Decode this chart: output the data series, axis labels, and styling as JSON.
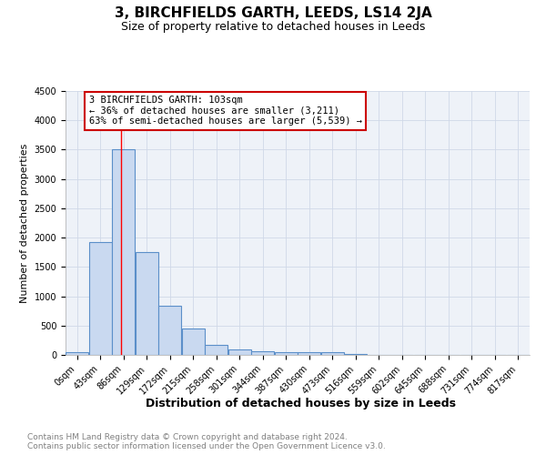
{
  "title": "3, BIRCHFIELDS GARTH, LEEDS, LS14 2JA",
  "subtitle": "Size of property relative to detached houses in Leeds",
  "xlabel": "Distribution of detached houses by size in Leeds",
  "ylabel": "Number of detached properties",
  "bin_edges": [
    0,
    43,
    86,
    129,
    172,
    215,
    258,
    301,
    344,
    387,
    430,
    473,
    516,
    559,
    602,
    645,
    688,
    731,
    774,
    817,
    860
  ],
  "bar_heights": [
    50,
    1920,
    3500,
    1750,
    840,
    450,
    175,
    100,
    60,
    50,
    40,
    50,
    15,
    5,
    5,
    3,
    2,
    2,
    1,
    1
  ],
  "bar_facecolor": "#c9d9f0",
  "bar_edgecolor": "#5b8fc9",
  "bar_linewidth": 0.8,
  "red_line_x": 103,
  "annotation_text": "3 BIRCHFIELDS GARTH: 103sqm\n← 36% of detached houses are smaller (3,211)\n63% of semi-detached houses are larger (5,539) →",
  "annotation_box_edgecolor": "#cc0000",
  "annotation_box_facecolor": "#ffffff",
  "ylim": [
    0,
    4500
  ],
  "yticks": [
    0,
    500,
    1000,
    1500,
    2000,
    2500,
    3000,
    3500,
    4000,
    4500
  ],
  "grid_color": "#d0d8e8",
  "background_color": "#eef2f8",
  "footer_line1": "Contains HM Land Registry data © Crown copyright and database right 2024.",
  "footer_line2": "Contains public sector information licensed under the Open Government Licence v3.0.",
  "title_fontsize": 11,
  "subtitle_fontsize": 9,
  "xlabel_fontsize": 9,
  "ylabel_fontsize": 8,
  "tick_fontsize": 7,
  "footer_fontsize": 6.5,
  "annotation_fontsize": 7.5
}
